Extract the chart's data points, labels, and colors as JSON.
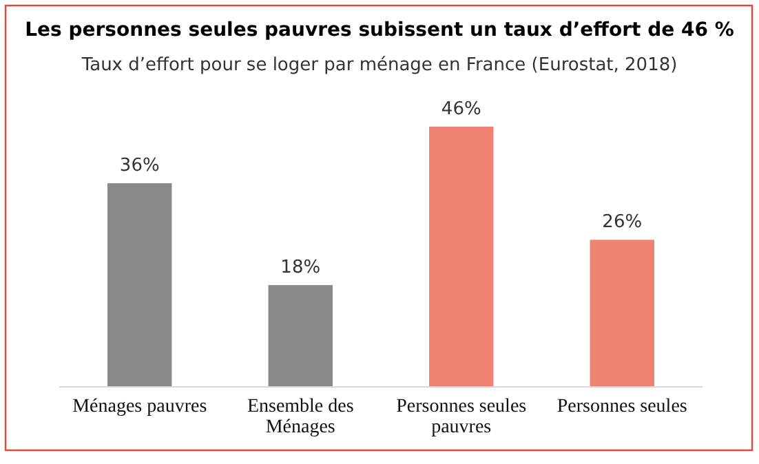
{
  "chart_data": {
    "type": "bar",
    "title": "Les personnes seules pauvres subissent un taux d’effort de 46 %",
    "subtitle": "Taux d’effort pour se loger par ménage en France (Eurostat, 2018)",
    "categories": [
      "Ménages pauvres",
      "Ensemble des Ménages",
      "Personnes seules pauvres",
      "Personnes seules"
    ],
    "values": [
      36,
      18,
      46,
      26
    ],
    "colors": [
      "#898989",
      "#898989",
      "#f08272",
      "#f08272"
    ],
    "value_labels": [
      "36%",
      "18%",
      "46%",
      "26%"
    ],
    "grid": false
  }
}
